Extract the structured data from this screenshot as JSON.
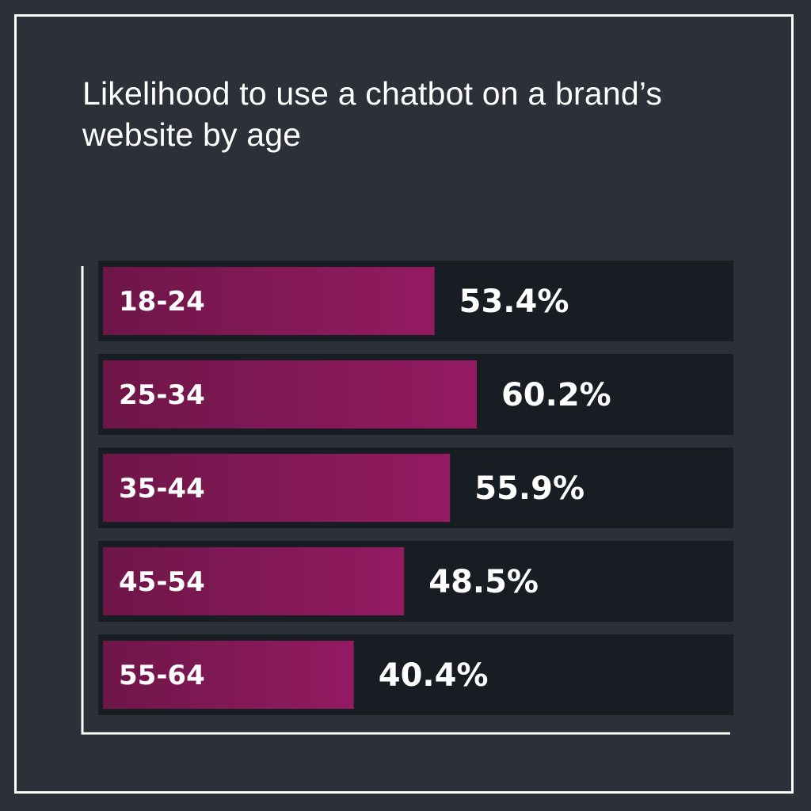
{
  "title": "Likelihood to use a chatbot on a brand’s website by age",
  "colors": {
    "background": "#2c3038",
    "track": "#181d23",
    "bar_start": "#6e1648",
    "bar_end": "#941a62",
    "text": "#ffffff",
    "frame": "#ffffff"
  },
  "chart_data": {
    "type": "bar",
    "orientation": "horizontal",
    "title": "Likelihood to use a chatbot on a brand’s website by age",
    "categories": [
      "18-24",
      "25-34",
      "35-44",
      "45-54",
      "55-64"
    ],
    "values": [
      53.4,
      60.2,
      55.9,
      48.5,
      40.4
    ],
    "value_labels": [
      "53.4%",
      "60.2%",
      "55.9%",
      "48.5%",
      "40.4%"
    ],
    "xlabel": "",
    "ylabel": "",
    "xlim": [
      0,
      100
    ],
    "grid": false,
    "legend": "none"
  }
}
